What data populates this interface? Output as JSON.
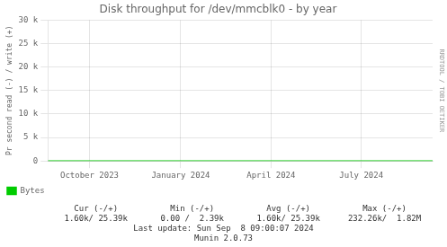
{
  "chart_data": {
    "type": "line",
    "title": "Disk throughput for /dev/mmcblk0 - by year",
    "ylabel": "Pr second read (-) / write (+)",
    "x": [
      1692500000,
      1726000000
    ],
    "series": [
      {
        "name": "Bytes",
        "color": "#00cc00",
        "values": [
          0,
          0
        ]
      }
    ],
    "xlim": [
      1692500000,
      1726000000
    ],
    "xticks": [
      {
        "value": 1696118400,
        "label": "October 2023"
      },
      {
        "value": 1704067200,
        "label": "January 2024"
      },
      {
        "value": 1711929600,
        "label": "April 2024"
      },
      {
        "value": 1719792000,
        "label": "July 2024"
      }
    ],
    "ylim": [
      0,
      30000
    ],
    "yticks": [
      0,
      {
        "value": 5000,
        "label": "5 k"
      },
      {
        "value": 10000,
        "label": "10 k"
      },
      {
        "value": 15000,
        "label": "15 k"
      },
      {
        "value": 20000,
        "label": "20 k"
      },
      {
        "value": 25000,
        "label": "25 k"
      },
      {
        "value": 30000,
        "label": "30 k"
      }
    ],
    "grid": true,
    "legend": "bottom",
    "annotations": [
      [
        "Cur (-/+)",
        "Min (-/+)",
        "Avg (-/+)",
        "Max (-/+)"
      ],
      [
        "1.60k/ 25.39k",
        "0.00 /  2.39k",
        "1.60k/ 25.39k",
        "232.26k/  1.82M"
      ],
      [
        "Last update: Sun Sep  8 09:00:07 2024"
      ],
      [
        "Munin 2.0.73"
      ],
      [
        "RRDTOOL / TOBI OETIKER"
      ]
    ]
  }
}
